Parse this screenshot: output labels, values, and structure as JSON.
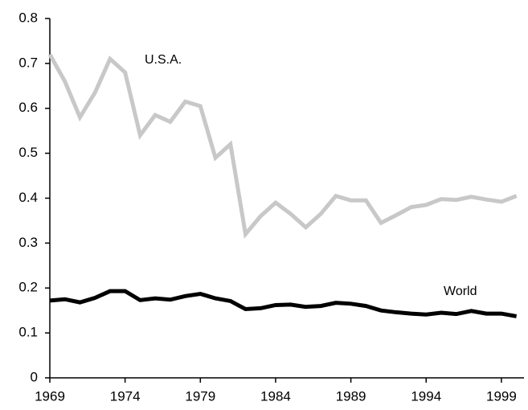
{
  "chart_data": {
    "type": "line",
    "x": [
      1969,
      1970,
      1971,
      1972,
      1973,
      1974,
      1975,
      1976,
      1977,
      1978,
      1979,
      1980,
      1981,
      1982,
      1983,
      1984,
      1985,
      1986,
      1987,
      1988,
      1989,
      1990,
      1991,
      1992,
      1993,
      1994,
      1995,
      1996,
      1997,
      1998,
      1999,
      2000
    ],
    "series": [
      {
        "name": "U.S.A.",
        "color": "#c8c8c8",
        "values": [
          0.72,
          0.66,
          0.58,
          0.635,
          0.71,
          0.68,
          0.54,
          0.585,
          0.57,
          0.615,
          0.605,
          0.49,
          0.52,
          0.32,
          0.36,
          0.39,
          0.365,
          0.335,
          0.365,
          0.405,
          0.395,
          0.395,
          0.345,
          0.362,
          0.38,
          0.385,
          0.398,
          0.396,
          0.403,
          0.397,
          0.392,
          0.405
        ]
      },
      {
        "name": "World",
        "color": "#000000",
        "values": [
          0.172,
          0.175,
          0.168,
          0.178,
          0.193,
          0.193,
          0.173,
          0.177,
          0.174,
          0.182,
          0.187,
          0.177,
          0.171,
          0.153,
          0.155,
          0.162,
          0.163,
          0.158,
          0.16,
          0.167,
          0.165,
          0.16,
          0.15,
          0.146,
          0.143,
          0.141,
          0.145,
          0.142,
          0.149,
          0.143,
          0.143,
          0.137
        ]
      }
    ],
    "xlim": [
      1969,
      2000.5
    ],
    "xticks": [
      1969,
      1974,
      1979,
      1984,
      1989,
      1994,
      1999
    ],
    "ylim": [
      0,
      0.8
    ],
    "yticks": [
      0,
      0.1,
      0.2,
      0.3,
      0.4,
      0.5,
      0.6,
      0.7,
      0.8
    ]
  }
}
